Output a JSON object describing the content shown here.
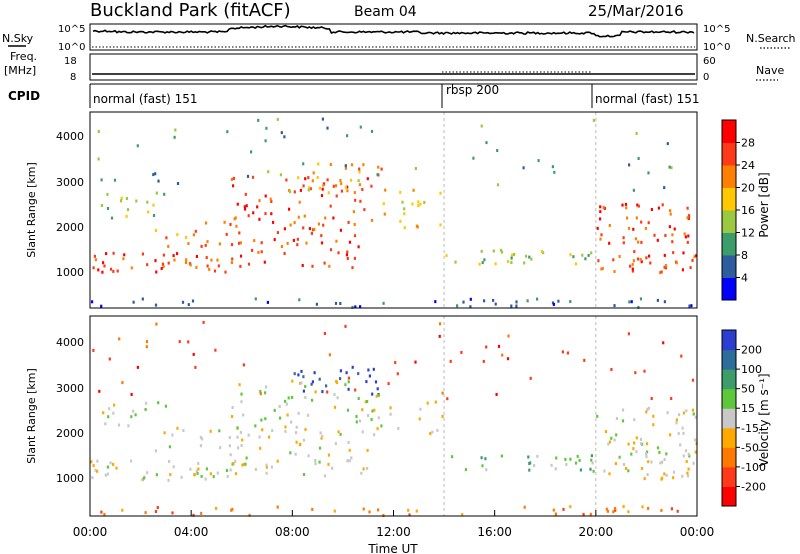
{
  "header": {
    "site": "Buckland Park (fitACF)",
    "beam": "Beam 04",
    "date": "25/Mar/2016"
  },
  "left_labels": {
    "nsky": "N.Sky",
    "freq": "Freq.",
    "freq_unit": "[MHz]",
    "cpid": "CPID"
  },
  "right_labels": {
    "nsearch": "N.Search",
    "nave": "Nave"
  },
  "nsky_ticks": {
    "top": "10^5",
    "bottom": "10^0"
  },
  "nsearch_ticks": {
    "top": "10^5",
    "bottom": "10^0"
  },
  "freq_ticks": {
    "top": "18",
    "bottom": "8"
  },
  "nave_ticks": {
    "top": "60",
    "bottom": "0"
  },
  "cpid_segments": [
    {
      "label": "normal (fast) 151",
      "start": "00:00"
    },
    {
      "label": "rbsp 200",
      "start": "14:00"
    },
    {
      "label": "normal (fast) 151",
      "start": "20:00"
    }
  ],
  "time_ticks": [
    "00:00",
    "04:00",
    "08:00",
    "12:00",
    "16:00",
    "20:00",
    "00:00"
  ],
  "xlabel": "Time UT",
  "panels": {
    "power": {
      "ylabel": "Slant Range [km]",
      "yticks": [
        "1000",
        "2000",
        "3000",
        "4000"
      ],
      "colorbar_label": "Power [dB]",
      "colorbar_ticks": [
        "4",
        "8",
        "12",
        "16",
        "20",
        "24",
        "28"
      ],
      "colors": [
        "#0000ff",
        "#2e5c9e",
        "#3c9c6a",
        "#9ac840",
        "#ffc800",
        "#ff8000",
        "#ff3a1a",
        "#ff0000"
      ]
    },
    "velocity": {
      "ylabel": "Slant Range [km]",
      "yticks": [
        "1000",
        "2000",
        "3000",
        "4000"
      ],
      "colorbar_label": "Velocity [m s⁻¹]",
      "colorbar_ticks": [
        "200",
        "100",
        "50",
        "15",
        "-15",
        "-50",
        "-100",
        "-200"
      ],
      "colors": [
        "#2b3ed0",
        "#2d6d9a",
        "#3c9c6a",
        "#5ec83c",
        "#c8c8c8",
        "#ffa800",
        "#ff7800",
        "#ff3a1a",
        "#ff0000"
      ]
    }
  },
  "chart_data": [
    {
      "type": "line",
      "title": "Buckland Park (fitACF)",
      "series": [],
      "x": [
        "00:00",
        "04:00",
        "08:00",
        "12:00",
        "16:00",
        "20:00",
        "00:00"
      ],
      "xlabel": "",
      "ylabel": "N.Sky",
      "ylim": [
        0,
        5
      ]
    },
    {
      "type": "heatmap",
      "title": "",
      "xlabel": "Time UT",
      "ylabel": "Slant Range [km]",
      "xlim": [
        0,
        24
      ],
      "ylim": [
        180,
        4600
      ],
      "colorbar": "Power [dB]",
      "colorbar_range": [
        0,
        30
      ]
    },
    {
      "type": "heatmap",
      "title": "",
      "xlabel": "Time UT",
      "ylabel": "Slant Range [km]",
      "xlim": [
        0,
        24
      ],
      "ylim": [
        180,
        4600
      ],
      "colorbar": "Velocity [m s⁻¹]",
      "colorbar_range": [
        -250,
        250
      ]
    }
  ]
}
